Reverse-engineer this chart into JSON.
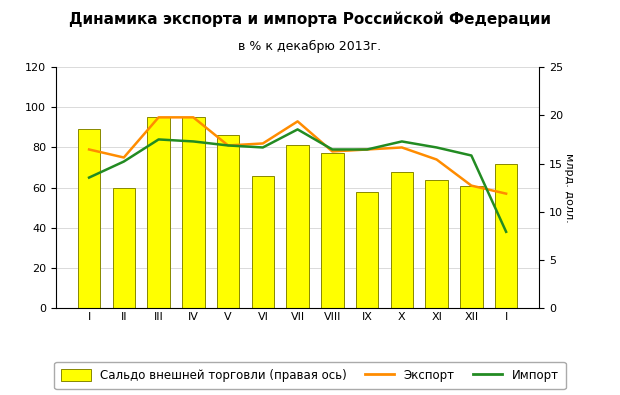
{
  "title": "Динамика экспорта и импорта Российской Федерации",
  "subtitle": "в % к декабрю 2013г.",
  "categories": [
    "I",
    "II",
    "III",
    "IV",
    "V",
    "VI",
    "VII",
    "VIII",
    "IX",
    "X",
    "XI",
    "XII",
    "I"
  ],
  "year_label_2014_xpos": 5.5,
  "year_label_2015_xpos": 11.0,
  "bar_values": [
    89,
    60,
    95,
    95,
    86,
    66,
    81,
    77,
    58,
    68,
    64,
    61,
    72
  ],
  "export_values": [
    79,
    75,
    95,
    95,
    81,
    82,
    93,
    78,
    79,
    80,
    74,
    61,
    57
  ],
  "import_values": [
    65,
    73,
    84,
    83,
    81,
    80,
    89,
    79,
    79,
    83,
    80,
    76,
    38
  ],
  "bar_color": "#FFFF00",
  "bar_edgecolor": "#888800",
  "export_color": "#FF8C00",
  "import_color": "#228B22",
  "ylim_left": [
    0,
    120
  ],
  "ylim_right": [
    0,
    25
  ],
  "yticks_left": [
    0,
    20,
    40,
    60,
    80,
    100,
    120
  ],
  "yticks_right": [
    0,
    5,
    10,
    15,
    20,
    25
  ],
  "ylabel_right": "млрд. долл.",
  "legend_bar": "Сальдо внешней торговли (правая ось)",
  "legend_export": "Экспорт",
  "legend_import": "Импорт",
  "bg_color": "#FFFFFF",
  "title_fontsize": 11,
  "subtitle_fontsize": 9,
  "tick_fontsize": 8,
  "legend_fontsize": 8.5
}
